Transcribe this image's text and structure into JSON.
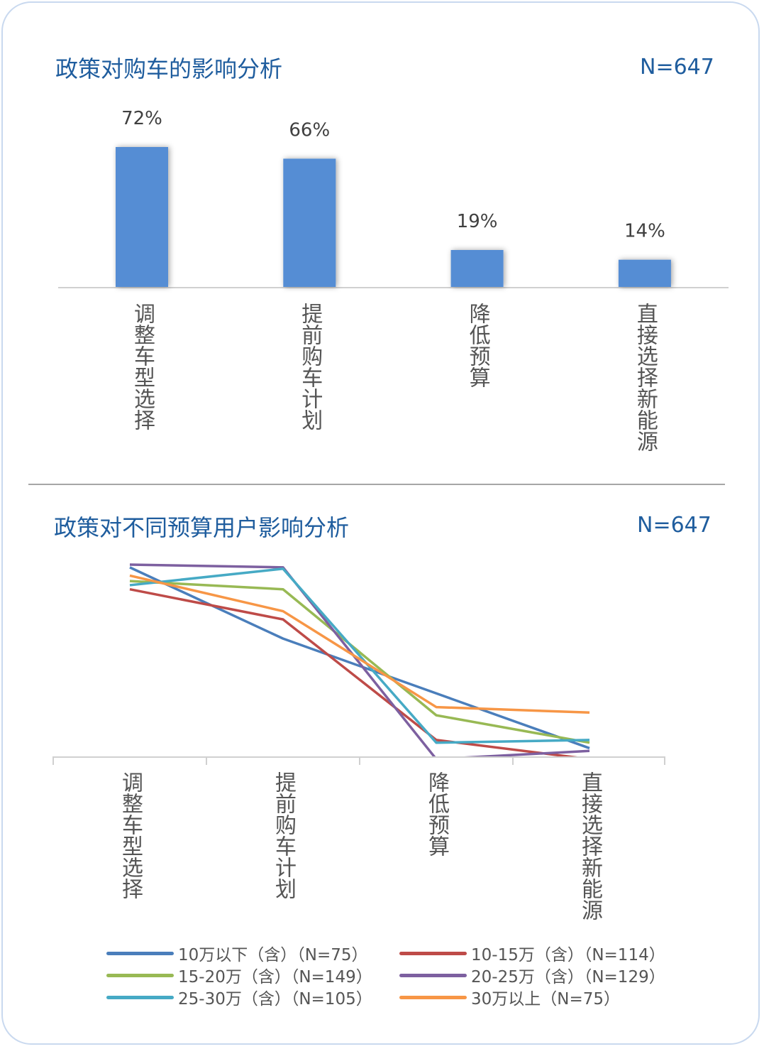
{
  "chart_data": [
    {
      "type": "bar",
      "title": "政策对购车的影响分析",
      "sample_label": "N=647",
      "categories": [
        "调整车型选择",
        "提前购车计划",
        "降低预算",
        "直接选择新能源"
      ],
      "values": [
        72,
        66,
        19,
        14
      ],
      "data_labels": [
        "72%",
        "66%",
        "19%",
        "14%"
      ],
      "ylim": [
        0,
        80
      ],
      "grid": false,
      "color": "#548dd4"
    },
    {
      "type": "line",
      "title": "政策对不同预算用户影响分析",
      "sample_label": "N=647",
      "categories": [
        "调整车型选择",
        "提前购车计划",
        "降低预算",
        "直接选择新能源"
      ],
      "ylim": [
        10,
        80
      ],
      "grid": false,
      "legend_position": "bottom",
      "series": [
        {
          "name": "10万以下（含）（N=75）",
          "color": "#4a7ebb",
          "values": [
            79,
            53,
            33,
            13
          ]
        },
        {
          "name": "10-15万（含）（N=114）",
          "color": "#be4b48",
          "values": [
            71,
            60,
            16,
            9
          ]
        },
        {
          "name": "15-20万（含）（N=149）",
          "color": "#98b954",
          "values": [
            74,
            71,
            25,
            15
          ]
        },
        {
          "name": "20-25万（含）（N=129）",
          "color": "#7d60a0",
          "values": [
            80,
            79,
            9,
            12
          ]
        },
        {
          "name": "25-30万（含）（N=105）",
          "color": "#46aac5",
          "values": [
            72.5,
            78.5,
            15,
            16
          ]
        },
        {
          "name": "30万以上（N=75）",
          "color": "#f79646",
          "values": [
            76,
            63,
            28,
            26
          ]
        }
      ]
    }
  ]
}
